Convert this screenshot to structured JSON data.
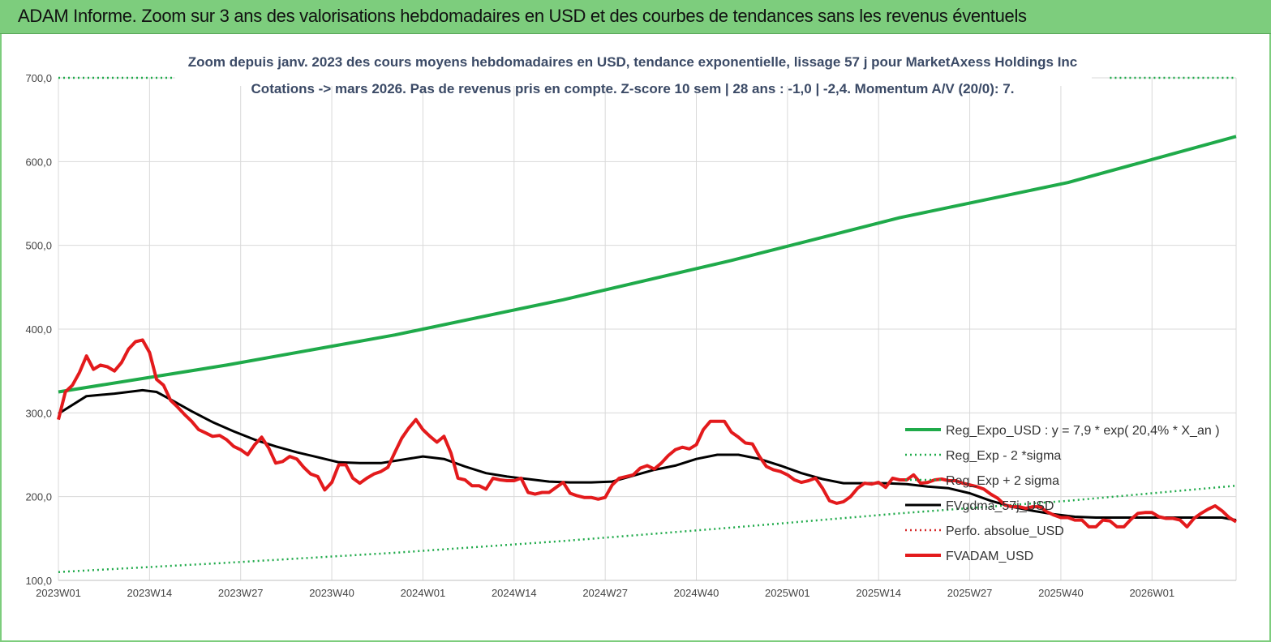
{
  "header": {
    "title": "ADAM Informe. Zoom sur 3 ans des valorisations hebdomadaires en USD et des courbes de tendances sans les revenus éventuels"
  },
  "chart_data": {
    "type": "line",
    "title_line1": "Zoom depuis janv. 2023 des cours moyens hebdomadaires en USD, tendance exponentielle, lissage 57 j pour MarketAxess Holdings Inc",
    "title_line2": "Cotations -> mars 2026. Pas de revenus pris en compte. Z-score 10 sem | 28 ans : -1,0 | -2,4. Momentum A/V (20/0): 7.",
    "ylim": [
      100,
      700
    ],
    "yticks": [
      100,
      200,
      300,
      400,
      500,
      600,
      700
    ],
    "ytick_labels": [
      "100,0",
      "200,0",
      "300,0",
      "400,0",
      "500,0",
      "600,0",
      "700,0"
    ],
    "xlim": [
      0,
      168
    ],
    "xticks": [
      0,
      13,
      26,
      39,
      52,
      65,
      78,
      91,
      104,
      117,
      130,
      143,
      156
    ],
    "xtick_labels": [
      "2023W01",
      "2023W14",
      "2023W27",
      "2023W40",
      "2024W01",
      "2024W14",
      "2024W27",
      "2024W40",
      "2025W01",
      "2025W14",
      "2025W27",
      "2025W40",
      "2026W01"
    ],
    "grid": true,
    "legend_position": "right",
    "series": [
      {
        "name": "Reg_Expo_USD : y = 7,9 * exp( 20,4% *  X_an )",
        "color": "#1faa4a",
        "style": "solid-thick",
        "x": [
          0,
          24,
          48,
          72,
          96,
          120,
          144,
          168
        ],
        "values": [
          325,
          357,
          393,
          435,
          482,
          533,
          575,
          630
        ]
      },
      {
        "name": "Reg_Exp - 2 *sigma",
        "color": "#1faa4a",
        "style": "dotted",
        "x": [
          0,
          24,
          48,
          72,
          96,
          120,
          144,
          168
        ],
        "values": [
          110,
          121,
          133,
          147,
          163,
          180,
          195,
          213
        ]
      },
      {
        "name": "Reg_Exp + 2 sigma",
        "color": "#1faa4a",
        "style": "dotted",
        "x": [
          0,
          18,
          150,
          168
        ],
        "values": [
          700,
          700,
          700,
          700
        ]
      },
      {
        "name": "FVgdma_57j_USD",
        "color": "#000000",
        "style": "solid",
        "x": [
          0,
          4,
          8,
          12,
          14,
          16,
          19,
          22,
          25,
          28,
          31,
          34,
          37,
          40,
          43,
          46,
          49,
          52,
          55,
          58,
          61,
          64,
          67,
          70,
          73,
          76,
          79,
          82,
          85,
          88,
          91,
          94,
          97,
          100,
          103,
          106,
          109,
          112,
          115,
          118,
          121,
          124,
          127,
          130,
          133,
          136,
          139,
          142,
          145,
          148,
          151,
          154,
          157,
          160,
          163,
          166,
          168
        ],
        "values": [
          299,
          320,
          323,
          327,
          325,
          316,
          302,
          289,
          278,
          268,
          260,
          253,
          247,
          241,
          240,
          240,
          244,
          248,
          245,
          236,
          228,
          224,
          221,
          218,
          217,
          217,
          218,
          225,
          232,
          237,
          245,
          250,
          250,
          245,
          237,
          228,
          221,
          216,
          216,
          216,
          215,
          212,
          210,
          204,
          195,
          188,
          183,
          179,
          176,
          175,
          175,
          175,
          175,
          175,
          175,
          175,
          172
        ]
      },
      {
        "name": "Perfo. absolue_USD",
        "color": "#d62828",
        "style": "dotted",
        "x": [],
        "values": []
      },
      {
        "name": "FVADAM_USD",
        "color": "#e31a1c",
        "style": "solid-thick",
        "x": [
          0,
          1,
          2,
          3,
          4,
          5,
          6,
          7,
          8,
          9,
          10,
          11,
          12,
          13,
          14,
          15,
          16,
          17,
          18,
          19,
          20,
          21,
          22,
          23,
          24,
          25,
          26,
          27,
          28,
          29,
          30,
          31,
          32,
          33,
          34,
          35,
          36,
          37,
          38,
          39,
          40,
          41,
          42,
          43,
          44,
          45,
          46,
          47,
          48,
          49,
          50,
          51,
          52,
          53,
          54,
          55,
          56,
          57,
          58,
          59,
          60,
          61,
          62,
          63,
          64,
          65,
          66,
          67,
          68,
          69,
          70,
          71,
          72,
          73,
          74,
          75,
          76,
          77,
          78,
          79,
          80,
          81,
          82,
          83,
          84,
          85,
          86,
          87,
          88,
          89,
          90,
          91,
          92,
          93,
          94,
          95,
          96,
          97,
          98,
          99,
          100,
          101,
          102,
          103,
          104,
          105,
          106,
          107,
          108,
          109,
          110,
          111,
          112,
          113,
          114,
          115,
          116,
          117,
          118,
          119,
          120,
          121,
          122,
          123,
          124,
          125,
          126,
          127,
          128,
          129,
          130,
          131,
          132,
          133,
          134,
          135,
          136,
          137,
          138,
          139,
          140,
          141,
          142,
          143,
          144,
          145,
          146,
          147,
          148,
          149,
          150,
          151,
          152,
          153,
          154,
          155,
          156,
          157,
          158,
          159,
          160,
          161,
          162,
          163,
          164,
          165,
          166,
          167,
          168
        ],
        "values": [
          292,
          325,
          333,
          348,
          368,
          352,
          357,
          355,
          350,
          360,
          376,
          385,
          387,
          372,
          340,
          333,
          315,
          307,
          298,
          290,
          280,
          276,
          272,
          273,
          268,
          260,
          256,
          250,
          262,
          271,
          258,
          240,
          242,
          248,
          245,
          235,
          227,
          224,
          208,
          217,
          238,
          238,
          222,
          216,
          222,
          227,
          230,
          235,
          253,
          270,
          282,
          292,
          280,
          272,
          265,
          272,
          252,
          222,
          220,
          213,
          213,
          209,
          222,
          220,
          219,
          219,
          222,
          205,
          203,
          205,
          205,
          211,
          217,
          204,
          201,
          199,
          199,
          197,
          199,
          214,
          222,
          224,
          226,
          234,
          237,
          233,
          240,
          249,
          256,
          259,
          257,
          262,
          280,
          290,
          290,
          290,
          277,
          271,
          264,
          263,
          248,
          236,
          232,
          230,
          226,
          220,
          217,
          219,
          222,
          210,
          195,
          192,
          194,
          200,
          210,
          216,
          215,
          217,
          211,
          222,
          220,
          220,
          226,
          216,
          217,
          220,
          221,
          219,
          219,
          216,
          214,
          212,
          209,
          203,
          198,
          190,
          188,
          188,
          186,
          188,
          188,
          182,
          178,
          175,
          175,
          172,
          172,
          164,
          164,
          172,
          171,
          164,
          164,
          173,
          180,
          181,
          181,
          176,
          174,
          174,
          172,
          164,
          174,
          180,
          185,
          189,
          183,
          175,
          170
        ]
      }
    ]
  }
}
